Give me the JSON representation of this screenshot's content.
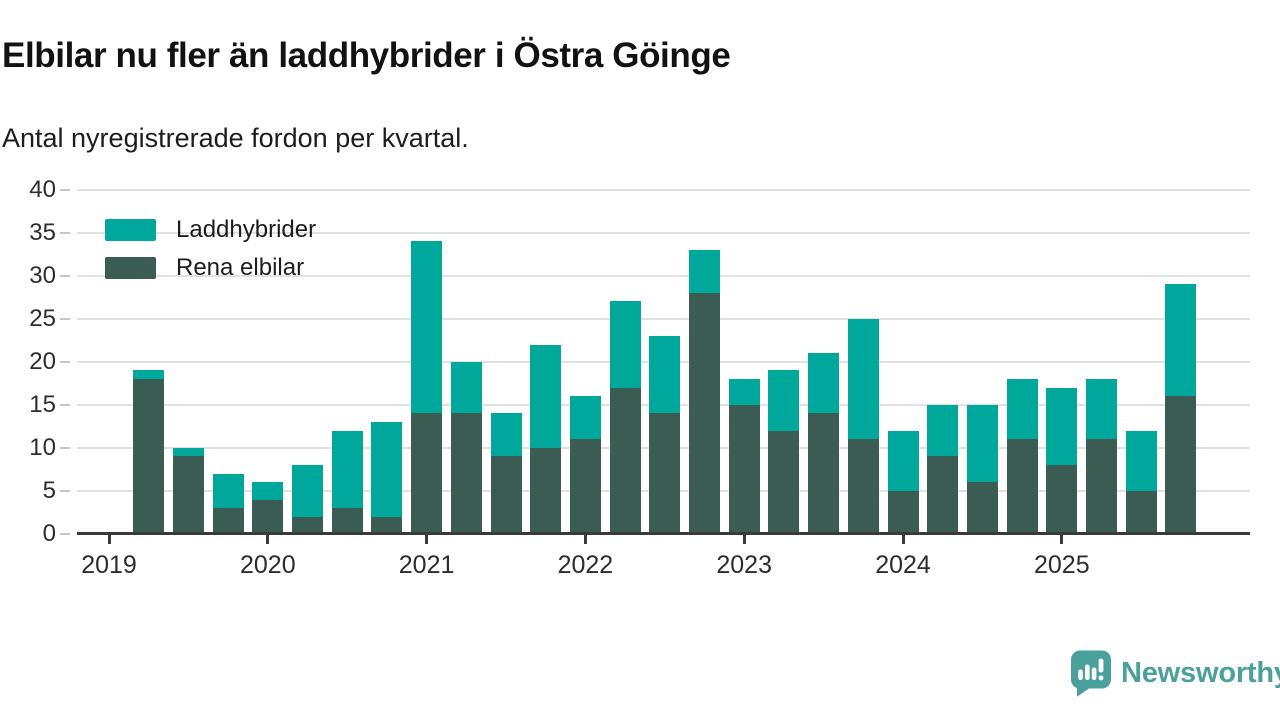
{
  "header": {
    "title": "Elbilar nu fler än laddhybrider i Östra Göinge",
    "subtitle": "Antal nyregistrerade fordon per kvartal."
  },
  "legend": {
    "items": [
      {
        "label": "Laddhybrider",
        "color": "#00a89c"
      },
      {
        "label": "Rena elbilar",
        "color": "#3a5c52"
      }
    ]
  },
  "branding": {
    "name": "Newsworthy",
    "color": "#4aa09a"
  },
  "chart_data": {
    "type": "bar",
    "stacked": true,
    "title": "Elbilar nu fler än laddhybrider i Östra Göinge",
    "subtitle": "Antal nyregistrerade fordon per kvartal.",
    "categories": [
      "2019 Q2",
      "2019 Q3",
      "2019 Q4",
      "2020 Q1",
      "2020 Q2",
      "2020 Q3",
      "2020 Q4",
      "2021 Q1",
      "2021 Q2",
      "2021 Q3",
      "2021 Q4",
      "2022 Q1",
      "2022 Q2",
      "2022 Q3",
      "2022 Q4",
      "2023 Q1",
      "2023 Q2",
      "2023 Q3",
      "2023 Q4",
      "2024 Q1",
      "2024 Q2",
      "2024 Q3",
      "2024 Q4",
      "2025 Q1",
      "2025 Q2",
      "2025 Q3",
      "2025 Q4"
    ],
    "slot_offset": 1,
    "series": [
      {
        "name": "Laddhybrider",
        "color": "#00a89c",
        "stack_position": "top",
        "values": [
          1,
          1,
          4,
          2,
          6,
          9,
          11,
          20,
          6,
          5,
          12,
          5,
          10,
          9,
          5,
          3,
          7,
          7,
          14,
          7,
          6,
          9,
          7,
          9,
          7,
          7,
          13
        ]
      },
      {
        "name": "Rena elbilar",
        "color": "#3a5c52",
        "stack_position": "bottom",
        "values": [
          18,
          9,
          3,
          4,
          2,
          3,
          2,
          14,
          14,
          9,
          10,
          11,
          17,
          14,
          28,
          15,
          12,
          14,
          11,
          5,
          9,
          6,
          11,
          8,
          11,
          5,
          16
        ]
      }
    ],
    "ylabel": "",
    "xlabel": "",
    "ylim": [
      0,
      40
    ],
    "yticks": [
      0,
      5,
      10,
      15,
      20,
      25,
      30,
      35,
      40
    ],
    "xticks": [
      {
        "label": "2019",
        "slot": 0
      },
      {
        "label": "2020",
        "slot": 4
      },
      {
        "label": "2021",
        "slot": 8
      },
      {
        "label": "2022",
        "slot": 12
      },
      {
        "label": "2023",
        "slot": 16
      },
      {
        "label": "2024",
        "slot": 20
      },
      {
        "label": "2025",
        "slot": 24
      }
    ],
    "grid": true,
    "legend_position": "top-left"
  }
}
